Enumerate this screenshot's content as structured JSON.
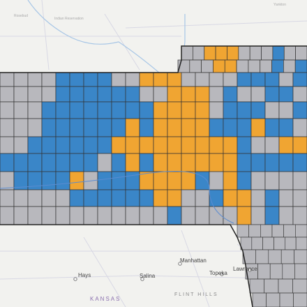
{
  "map": {
    "colors": {
      "background": "#f2f2ef",
      "blue": "#3a86c8",
      "orange": "#f0a532",
      "gray": "#b8b8bd",
      "border": "#333333"
    },
    "labels": {
      "hays": "Hays",
      "salina": "Salina",
      "manhattan": "Manhattan",
      "topeka": "Topeka",
      "lawrence": "Lawrence",
      "kansas": "KANSAS",
      "flint_hills": "FLINT HILLS"
    },
    "faint_labels": {
      "indian_reservation": "Indian Reservation",
      "rosebud": "Rosebud",
      "yankton": "Yankton"
    },
    "legend_categories": [
      "blue",
      "orange",
      "gray"
    ]
  }
}
